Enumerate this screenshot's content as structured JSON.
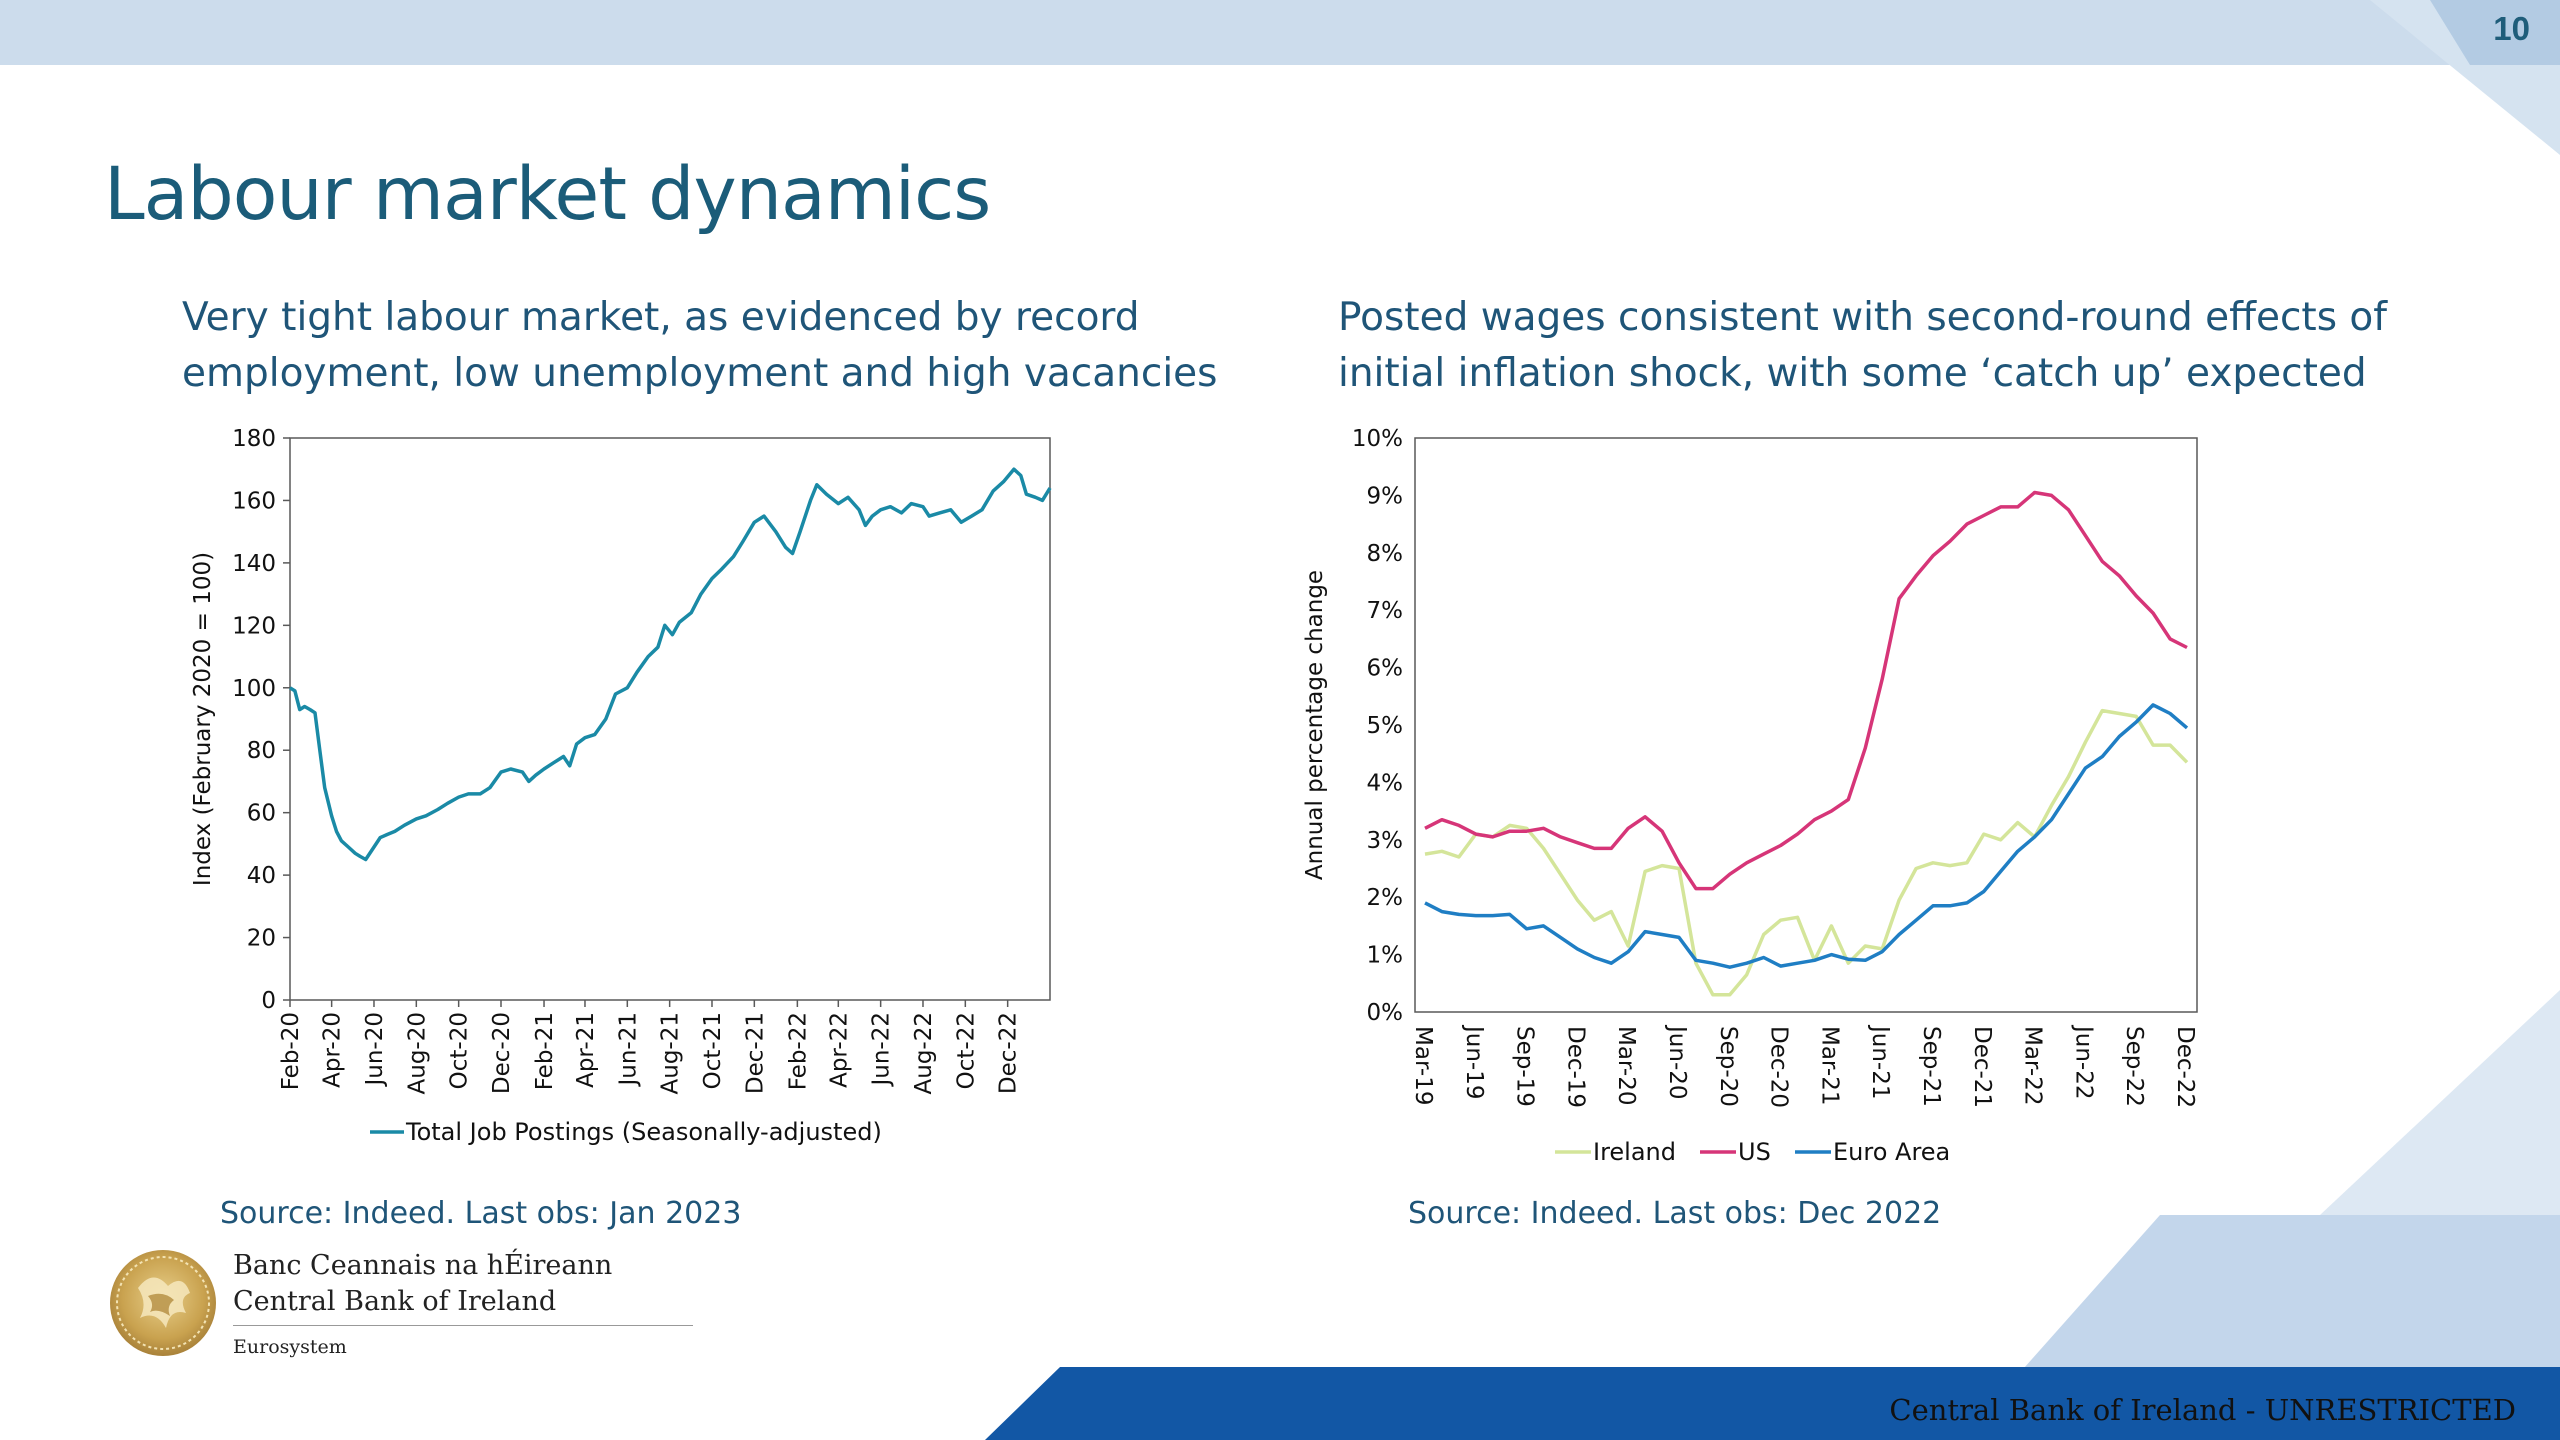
{
  "page": {
    "number": "10",
    "title": "Labour market dynamics",
    "colors": {
      "title": "#1b5c79",
      "top_band": "#ccdcec",
      "bottom_band": "#1257a5",
      "accent_light": "#b9cde4"
    }
  },
  "left_panel": {
    "subtitle_line1": "Very tight labour market, as evidenced by record",
    "subtitle_line2": "employment, low unemployment and high vacancies",
    "source": "Source: Indeed. Last obs: Jan 2023"
  },
  "right_panel": {
    "subtitle_line1": "Posted wages consistent with second-round effects of",
    "subtitle_line2": "initial inflation shock, with some ‘catch up’ expected",
    "source": "Source:  Indeed. Last obs: Dec 2022"
  },
  "logo": {
    "line1": "Banc Ceannais na hÉireann",
    "line2": "Central Bank of Ireland",
    "line3": "Eurosystem"
  },
  "footer": {
    "text": "Central Bank of Ireland - UNRESTRICTED"
  },
  "chart_data": [
    {
      "type": "line",
      "title": "",
      "xlabel": "",
      "ylabel": "Index (February 2020 = 100)",
      "ylim": [
        0,
        180
      ],
      "yticks": [
        "0",
        "20",
        "40",
        "60",
        "80",
        "100",
        "120",
        "140",
        "160",
        "180"
      ],
      "xticks": [
        "Feb-20",
        "Apr-20",
        "Jun-20",
        "Aug-20",
        "Oct-20",
        "Dec-20",
        "Feb-21",
        "Apr-21",
        "Jun-21",
        "Aug-21",
        "Oct-21",
        "Dec-21",
        "Feb-22",
        "Apr-22",
        "Jun-22",
        "Aug-22",
        "Oct-22",
        "Dec-22"
      ],
      "grid": false,
      "legend_position": "bottom",
      "x_start": "2020-02-01",
      "x_end": "2023-01-31",
      "series": [
        {
          "name": "Total Job Postings (Seasonally-adjusted)",
          "color": "#1a8aa6",
          "points": [
            [
              "2020-02-01",
              100
            ],
            [
              "2020-02-08",
              99
            ],
            [
              "2020-02-15",
              93
            ],
            [
              "2020-02-22",
              94
            ],
            [
              "2020-03-01",
              93
            ],
            [
              "2020-03-08",
              92
            ],
            [
              "2020-03-15",
              80
            ],
            [
              "2020-03-22",
              68
            ],
            [
              "2020-04-01",
              59
            ],
            [
              "2020-04-08",
              54
            ],
            [
              "2020-04-15",
              51
            ],
            [
              "2020-04-25",
              49
            ],
            [
              "2020-05-05",
              47
            ],
            [
              "2020-05-12",
              46
            ],
            [
              "2020-05-20",
              45
            ],
            [
              "2020-06-01",
              49
            ],
            [
              "2020-06-10",
              52
            ],
            [
              "2020-06-20",
              53
            ],
            [
              "2020-07-01",
              54
            ],
            [
              "2020-07-15",
              56
            ],
            [
              "2020-08-01",
              58
            ],
            [
              "2020-08-15",
              59
            ],
            [
              "2020-09-01",
              61
            ],
            [
              "2020-09-15",
              63
            ],
            [
              "2020-10-01",
              65
            ],
            [
              "2020-10-15",
              66
            ],
            [
              "2020-11-01",
              66
            ],
            [
              "2020-11-15",
              68
            ],
            [
              "2020-12-01",
              73
            ],
            [
              "2020-12-15",
              74
            ],
            [
              "2021-01-01",
              73
            ],
            [
              "2021-01-10",
              70
            ],
            [
              "2021-01-20",
              72
            ],
            [
              "2021-02-01",
              74
            ],
            [
              "2021-02-15",
              76
            ],
            [
              "2021-03-01",
              78
            ],
            [
              "2021-03-10",
              75
            ],
            [
              "2021-03-20",
              82
            ],
            [
              "2021-04-01",
              84
            ],
            [
              "2021-04-15",
              85
            ],
            [
              "2021-05-01",
              90
            ],
            [
              "2021-05-15",
              98
            ],
            [
              "2021-06-01",
              100
            ],
            [
              "2021-06-15",
              105
            ],
            [
              "2021-07-01",
              110
            ],
            [
              "2021-07-15",
              113
            ],
            [
              "2021-07-25",
              120
            ],
            [
              "2021-08-05",
              117
            ],
            [
              "2021-08-15",
              121
            ],
            [
              "2021-09-01",
              124
            ],
            [
              "2021-09-15",
              130
            ],
            [
              "2021-10-01",
              135
            ],
            [
              "2021-10-15",
              138
            ],
            [
              "2021-11-01",
              142
            ],
            [
              "2021-11-15",
              147
            ],
            [
              "2021-12-01",
              153
            ],
            [
              "2021-12-15",
              155
            ],
            [
              "2022-01-01",
              150
            ],
            [
              "2022-01-15",
              145
            ],
            [
              "2022-01-25",
              143
            ],
            [
              "2022-02-05",
              150
            ],
            [
              "2022-02-20",
              160
            ],
            [
              "2022-03-01",
              165
            ],
            [
              "2022-03-15",
              162
            ],
            [
              "2022-04-01",
              159
            ],
            [
              "2022-04-15",
              161
            ],
            [
              "2022-05-01",
              157
            ],
            [
              "2022-05-10",
              152
            ],
            [
              "2022-05-20",
              155
            ],
            [
              "2022-06-01",
              157
            ],
            [
              "2022-06-15",
              158
            ],
            [
              "2022-07-01",
              156
            ],
            [
              "2022-07-15",
              159
            ],
            [
              "2022-08-01",
              158
            ],
            [
              "2022-08-10",
              155
            ],
            [
              "2022-08-25",
              156
            ],
            [
              "2022-09-10",
              157
            ],
            [
              "2022-09-25",
              153
            ],
            [
              "2022-10-10",
              155
            ],
            [
              "2022-10-25",
              157
            ],
            [
              "2022-11-10",
              163
            ],
            [
              "2022-11-25",
              166
            ],
            [
              "2022-12-10",
              170
            ],
            [
              "2022-12-20",
              168
            ],
            [
              "2022-12-28",
              162
            ],
            [
              "2023-01-10",
              161
            ],
            [
              "2023-01-20",
              160
            ],
            [
              "2023-01-31",
              164
            ]
          ]
        }
      ]
    },
    {
      "type": "line",
      "title": "",
      "xlabel": "",
      "ylabel": "Annual percentage change",
      "ylim": [
        0,
        10
      ],
      "yticks": [
        "0%",
        "1%",
        "2%",
        "3%",
        "4%",
        "5%",
        "6%",
        "7%",
        "8%",
        "9%",
        "10%"
      ],
      "x": [
        "Mar-19",
        "Apr-19",
        "May-19",
        "Jun-19",
        "Jul-19",
        "Aug-19",
        "Sep-19",
        "Oct-19",
        "Nov-19",
        "Dec-19",
        "Jan-20",
        "Feb-20",
        "Mar-20",
        "Apr-20",
        "May-20",
        "Jun-20",
        "Jul-20",
        "Aug-20",
        "Sep-20",
        "Oct-20",
        "Nov-20",
        "Dec-20",
        "Jan-21",
        "Feb-21",
        "Mar-21",
        "Apr-21",
        "May-21",
        "Jun-21",
        "Jul-21",
        "Aug-21",
        "Sep-21",
        "Oct-21",
        "Nov-21",
        "Dec-21",
        "Jan-22",
        "Feb-22",
        "Mar-22",
        "Apr-22",
        "May-22",
        "Jun-22",
        "Jul-22",
        "Aug-22",
        "Sep-22",
        "Oct-22",
        "Nov-22",
        "Dec-22"
      ],
      "xticks": [
        "Mar-19",
        "Jun-19",
        "Sep-19",
        "Dec-19",
        "Mar-20",
        "Jun-20",
        "Sep-20",
        "Dec-20",
        "Mar-21",
        "Jun-21",
        "Sep-21",
        "Dec-21",
        "Mar-22",
        "Jun-22",
        "Sep-22",
        "Dec-22"
      ],
      "grid": false,
      "legend_position": "bottom",
      "series": [
        {
          "name": "Ireland",
          "color": "#d4e59a",
          "values": [
            2.75,
            2.8,
            2.7,
            3.1,
            3.05,
            3.25,
            3.2,
            2.85,
            2.4,
            1.95,
            1.6,
            1.75,
            1.15,
            2.45,
            2.55,
            2.5,
            0.85,
            0.3,
            0.3,
            0.65,
            1.35,
            1.6,
            1.65,
            0.9,
            1.5,
            0.85,
            1.15,
            1.1,
            1.95,
            2.5,
            2.6,
            2.55,
            2.6,
            3.1,
            3.0,
            3.3,
            3.05,
            3.6,
            4.1,
            4.7,
            5.25,
            5.2,
            5.15,
            4.65,
            4.65,
            4.35
          ]
        },
        {
          "name": "US",
          "color": "#d63578",
          "values": [
            3.2,
            3.35,
            3.25,
            3.1,
            3.05,
            3.15,
            3.15,
            3.2,
            3.05,
            2.95,
            2.85,
            2.85,
            3.2,
            3.4,
            3.15,
            2.6,
            2.15,
            2.15,
            2.4,
            2.6,
            2.75,
            2.9,
            3.1,
            3.35,
            3.5,
            3.7,
            4.6,
            5.8,
            7.2,
            7.6,
            7.95,
            8.2,
            8.5,
            8.65,
            8.8,
            8.8,
            9.05,
            9.0,
            8.75,
            8.3,
            7.85,
            7.6,
            7.25,
            6.95,
            6.5,
            6.35
          ]
        },
        {
          "name": "Euro Area",
          "color": "#1f7ec4",
          "values": [
            1.9,
            1.75,
            1.7,
            1.68,
            1.68,
            1.7,
            1.45,
            1.5,
            1.3,
            1.1,
            0.95,
            0.85,
            1.05,
            1.4,
            1.35,
            1.3,
            0.9,
            0.85,
            0.78,
            0.85,
            0.95,
            0.8,
            0.85,
            0.9,
            1.0,
            0.92,
            0.9,
            1.05,
            1.35,
            1.6,
            1.85,
            1.85,
            1.9,
            2.1,
            2.45,
            2.8,
            3.05,
            3.35,
            3.8,
            4.25,
            4.45,
            4.8,
            5.05,
            5.35,
            5.2,
            4.95
          ]
        }
      ]
    }
  ]
}
